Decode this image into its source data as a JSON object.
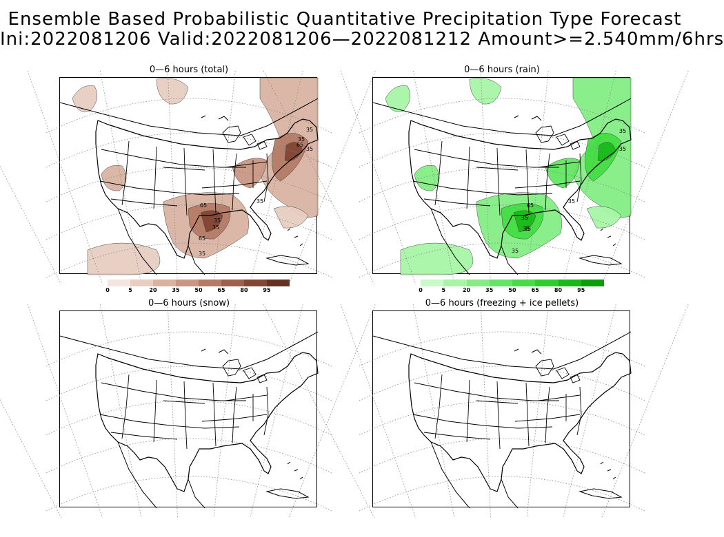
{
  "title": {
    "line1": "Ensemble Based Probabilistic Quantitative Precipitation Type Forecast",
    "line2": "Ini:2022081206 Valid:2022081206—2022081212 Amount>=2.540mm/6hrs"
  },
  "panels": [
    {
      "id": "total",
      "title": "0—6 hours (total)",
      "fill": "#c9977f",
      "line": "#000"
    },
    {
      "id": "rain",
      "title": "0—6 hours (rain)",
      "fill": "#6fe06f",
      "line": "#000"
    },
    {
      "id": "snow",
      "title": "0—6 hours (snow)"
    },
    {
      "id": "freezing",
      "title": "0—6 hours (freezing + ice pellets)"
    }
  ],
  "colorbars": {
    "total": {
      "labels": [
        "0",
        "5",
        "20",
        "35",
        "50",
        "65",
        "80",
        "95"
      ],
      "colors": [
        "#f4e6df",
        "#e8cec2",
        "#d9b3a2",
        "#c99683",
        "#b57b66",
        "#9c604c",
        "#7f4734",
        "#643222"
      ]
    },
    "rain": {
      "labels": [
        "0",
        "5",
        "20",
        "35",
        "50",
        "65",
        "80",
        "95"
      ],
      "colors": [
        "#c8fbc8",
        "#a6f5a6",
        "#84ee84",
        "#63e663",
        "#45dc45",
        "#2ccd2c",
        "#19b819",
        "#0a9e0a"
      ]
    }
  },
  "contour_labels": {
    "total": [
      "35",
      "35",
      "65",
      "35",
      "35",
      "65",
      "35",
      "35",
      "65",
      "35"
    ],
    "rain": [
      "35",
      "35",
      "35",
      "65",
      "35",
      "35",
      "35",
      "35"
    ]
  }
}
